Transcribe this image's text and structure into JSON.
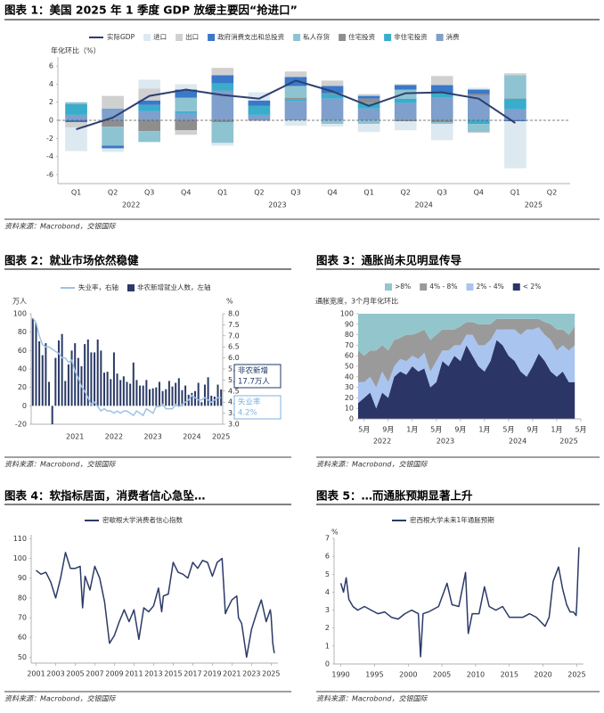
{
  "chart_data": [
    {
      "type": "bar",
      "stacked": true,
      "title": "图表 1：美国 2025 年 1 季度 GDP 放缓主要因“抢进口”",
      "y_label": "年化环比（%）",
      "source": "资料来源：Macrobond，交银国际",
      "categories": [
        "Q1",
        "Q2",
        "Q3",
        "Q4",
        "Q1",
        "Q2",
        "Q3",
        "Q4",
        "Q1",
        "Q2",
        "Q3",
        "Q4",
        "Q1",
        "Q2"
      ],
      "groups": [
        "2022",
        "2023",
        "2024",
        "2025"
      ],
      "ylim": [
        -7,
        7
      ],
      "yticks": [
        -6,
        -4,
        -2,
        0,
        2,
        4,
        6
      ],
      "series": [
        {
          "name": "实际GDP",
          "type": "line",
          "color": "#2e3f6e",
          "values": [
            -1.0,
            0.3,
            2.7,
            3.4,
            2.8,
            2.4,
            4.4,
            3.2,
            1.6,
            3.0,
            3.1,
            2.4,
            -0.3,
            null
          ]
        },
        {
          "name": "进口",
          "color": "#dde9f0",
          "values": [
            -2.6,
            -0.4,
            1.0,
            0.6,
            -0.3,
            0.9,
            -0.6,
            -0.3,
            -0.9,
            -1.0,
            -1.8,
            0.2,
            -5.2,
            null
          ]
        },
        {
          "name": "出口",
          "color": "#d0d0d0",
          "values": [
            -0.6,
            1.4,
            1.3,
            -0.5,
            0.8,
            -0.1,
            0.6,
            0.6,
            0.2,
            0.1,
            1.0,
            -0.1,
            0.2,
            null
          ]
        },
        {
          "name": "政府消费支出和总投资",
          "color": "#3a78c9",
          "values": [
            -0.2,
            -0.3,
            0.5,
            0.9,
            0.9,
            0.6,
            1.0,
            0.8,
            0.3,
            0.5,
            0.9,
            0.5,
            -0.1,
            null
          ]
        },
        {
          "name": "私人存货",
          "color": "#8ec3d1",
          "values": [
            0.2,
            -2.1,
            -1.2,
            1.5,
            -2.3,
            0.0,
            1.3,
            -0.4,
            -0.4,
            1.0,
            -0.2,
            -0.9,
            2.6,
            null
          ]
        },
        {
          "name": "住宅投资",
          "color": "#8e8e8e",
          "values": [
            0.0,
            -0.7,
            -1.2,
            -1.1,
            -0.2,
            0.0,
            0.2,
            0.1,
            0.5,
            -0.1,
            -0.2,
            0.2,
            0.0,
            null
          ]
        },
        {
          "name": "非住宅投资",
          "color": "#3aaccc",
          "values": [
            1.2,
            0.0,
            0.7,
            0.2,
            0.8,
            1.0,
            0.2,
            0.5,
            0.6,
            0.5,
            0.5,
            -0.4,
            1.2,
            null
          ]
        },
        {
          "name": "消费",
          "color": "#7f9fcc",
          "values": [
            0.6,
            1.3,
            1.0,
            0.8,
            3.3,
            0.6,
            2.1,
            2.4,
            1.3,
            1.9,
            2.5,
            2.7,
            1.2,
            null
          ]
        }
      ]
    },
    {
      "type": "bar",
      "stacked": false,
      "title": "图表 2：就业市场依然稳健",
      "y_label": "万人",
      "y2_label": "%",
      "source": "资料来源：Macrobond，交银国际",
      "categories": [
        null,
        null,
        null,
        null,
        null,
        null,
        null,
        null,
        null,
        null,
        null,
        null,
        null,
        "2021",
        null,
        null,
        null,
        null,
        null,
        null,
        null,
        null,
        null,
        null,
        null,
        "2022",
        null,
        null,
        null,
        null,
        null,
        null,
        null,
        null,
        null,
        null,
        null,
        "2023",
        null,
        null,
        null,
        null,
        null,
        null,
        null,
        null,
        null,
        null,
        null,
        "2024",
        null,
        null,
        null,
        null,
        null,
        null,
        null,
        null,
        "2025"
      ],
      "ylim": [
        -20,
        100
      ],
      "yticks": [
        -20,
        0,
        20,
        40,
        60,
        80,
        100
      ],
      "y2lim": [
        3,
        8
      ],
      "y2ticks": [
        {
          "value": 3,
          "label": "3.0"
        },
        3.5,
        {
          "value": 4,
          "label": "4.0"
        },
        4.5,
        {
          "value": 5,
          "label": "5.0"
        },
        5.5,
        {
          "value": 6,
          "label": "6.0"
        },
        6.5,
        {
          "value": 7,
          "label": "7.0"
        },
        7.5,
        {
          "value": 8,
          "label": "8.0"
        }
      ],
      "series": [
        {
          "name": "失业率，右轴",
          "type": "line",
          "axis": "y2",
          "color": "#9dc3e6",
          "values": [
            7.8,
            7.6,
            7.0,
            6.6,
            6.5,
            6.5,
            6.4,
            6.3,
            6.2,
            6.0,
            6.0,
            5.8,
            5.9,
            5.4,
            5.1,
            4.7,
            4.5,
            4.2,
            3.9,
            4.0,
            3.8,
            3.6,
            3.7,
            3.6,
            3.6,
            3.5,
            3.6,
            3.5,
            3.6,
            3.6,
            3.5,
            3.4,
            3.6,
            3.5,
            3.4,
            3.7,
            3.6,
            3.5,
            3.8,
            3.8,
            3.9,
            3.7,
            3.7,
            3.7,
            3.9,
            3.8,
            3.9,
            4.0,
            4.1,
            4.3,
            4.2,
            4.1,
            4.1,
            4.2,
            4.1,
            4.0,
            4.1,
            4.2,
            4.2
          ]
        },
        {
          "name": "非农新增就业人数，左轴",
          "color": "#2b3a67",
          "values": [
            95,
            90,
            70,
            55,
            68,
            26,
            -20,
            52,
            71,
            78,
            27,
            45,
            60,
            68,
            52,
            43,
            67,
            72,
            58,
            58,
            72,
            60,
            36,
            37,
            29,
            58,
            35,
            28,
            32,
            26,
            24,
            47,
            28,
            22,
            22,
            28,
            18,
            19,
            20,
            26,
            16,
            18,
            27,
            21,
            25,
            30,
            17,
            22,
            12,
            14,
            16,
            25,
            4,
            23,
            31,
            11,
            10,
            23,
            17.7
          ]
        }
      ],
      "annotations": [
        {
          "lines": [
            "非农新增",
            "17.7万人"
          ],
          "color": "#1f3864"
        },
        {
          "lines": [
            "失业率",
            "4.2%"
          ],
          "color": "#7fb2e0"
        }
      ]
    },
    {
      "type": "area",
      "title": "图表 3：通胀尚未见明显传导",
      "subtitle": "通胀宽度，3个月年化环比",
      "source": "资料来源：Macrobond，交银国际",
      "categories": [
        null,
        "5月",
        null,
        null,
        null,
        "9月",
        null,
        null,
        null,
        "1月",
        null,
        null,
        null,
        "5月",
        null,
        null,
        null,
        "9月",
        null,
        null,
        null,
        "1月",
        null,
        null,
        null,
        "5月",
        null,
        null,
        null,
        "9月",
        null,
        null,
        null,
        "1月",
        null,
        null,
        null,
        "5月"
      ],
      "groups": [
        "2022",
        "2023",
        "2024",
        "2025"
      ],
      "ylim": [
        0,
        100
      ],
      "yticks": [
        0,
        10,
        20,
        30,
        40,
        50,
        60,
        70,
        80,
        90,
        100
      ],
      "series": [
        {
          "name": ">8%",
          "color": "#93c6cc",
          "values": [
            35,
            40,
            35,
            35,
            30,
            35,
            25,
            23,
            20,
            20,
            18,
            15,
            25,
            20,
            15,
            15,
            15,
            12,
            8,
            8,
            10,
            10,
            10,
            5,
            5,
            5,
            5,
            5,
            5,
            5,
            5,
            8,
            10,
            15,
            15,
            20,
            12,
            null
          ]
        },
        {
          "name": "4% - 8%",
          "color": "#9a9a9a",
          "values": [
            30,
            25,
            25,
            35,
            25,
            30,
            25,
            20,
            25,
            20,
            25,
            22,
            30,
            25,
            20,
            20,
            15,
            18,
            12,
            12,
            20,
            20,
            15,
            10,
            10,
            10,
            10,
            15,
            10,
            10,
            8,
            12,
            15,
            20,
            15,
            15,
            18,
            null
          ]
        },
        {
          "name": "2% - 4%",
          "color": "#a9c4ef",
          "values": [
            20,
            15,
            15,
            20,
            20,
            15,
            10,
            12,
            13,
            10,
            12,
            15,
            15,
            20,
            10,
            15,
            10,
            15,
            10,
            20,
            20,
            25,
            20,
            10,
            15,
            25,
            30,
            35,
            45,
            35,
            25,
            25,
            30,
            25,
            25,
            30,
            35,
            null
          ]
        },
        {
          "name": "< 2%",
          "color": "#2b3566",
          "values": [
            15,
            20,
            25,
            10,
            25,
            20,
            40,
            45,
            42,
            50,
            45,
            48,
            30,
            35,
            55,
            50,
            60,
            55,
            70,
            60,
            50,
            45,
            55,
            75,
            70,
            60,
            55,
            45,
            40,
            50,
            62,
            55,
            45,
            40,
            45,
            35,
            35,
            null
          ]
        }
      ]
    },
    {
      "type": "line",
      "title": "图表 4：软指标居面，消费者信心急坠…",
      "source": "资料来源：Macrobond，交银国际",
      "xlim": [
        2000.5,
        2025.7
      ],
      "xticks": [
        2001,
        2003,
        2005,
        2007,
        2009,
        2011,
        2013,
        2015,
        2017,
        2019,
        2021,
        2023,
        2025
      ],
      "ylim": [
        47,
        112
      ],
      "yticks": [
        50,
        60,
        70,
        80,
        90,
        100,
        110
      ],
      "series": [
        {
          "name": "密歇根大学消费者信心指数",
          "color": "#2b3a67",
          "x": [
            2001,
            2001.5,
            2002,
            2002.5,
            2003,
            2003.5,
            2004,
            2004.5,
            2005,
            2005.5,
            2005.75,
            2006,
            2006.5,
            2007,
            2007.5,
            2008,
            2008.5,
            2009,
            2009.5,
            2010,
            2010.5,
            2011,
            2011.5,
            2012,
            2012.5,
            2013,
            2013.5,
            2013.83,
            2014,
            2014.5,
            2015,
            2015.5,
            2016,
            2016.5,
            2017,
            2017.5,
            2018,
            2018.5,
            2019,
            2019.5,
            2020,
            2020.33,
            2020.5,
            2021,
            2021.5,
            2021.67,
            2022,
            2022.5,
            2023,
            2023.5,
            2024,
            2024.5,
            2024.92,
            2025,
            2025.17,
            2025.33
          ],
          "values": [
            94,
            92,
            93,
            88,
            80,
            90,
            103,
            95,
            95,
            96,
            75,
            91,
            84,
            96,
            90,
            78,
            57,
            61,
            68,
            74,
            68,
            74,
            59,
            75,
            73,
            76,
            85,
            73,
            81,
            82,
            98,
            93,
            92,
            90,
            98,
            95,
            99,
            98,
            91,
            98,
            100,
            72,
            74,
            79,
            81,
            70,
            67,
            50,
            64,
            72,
            79,
            68,
            74,
            71,
            57,
            52
          ]
        }
      ]
    },
    {
      "type": "line",
      "title": "图表 5：…而通胀预期显著上升",
      "y_label": "%",
      "source": "资料来源：Macrobond，交银国际",
      "xlim": [
        1989,
        2026
      ],
      "xticks": [
        1990,
        1995,
        2000,
        2005,
        2010,
        2015,
        2020,
        2025
      ],
      "ylim": [
        0,
        7
      ],
      "yticks": [
        0,
        1,
        2,
        3,
        4,
        5,
        6,
        7
      ],
      "series": [
        {
          "name": "密西根大学未来1年通胀预期",
          "color": "#2b3a67",
          "x": [
            1990,
            1990.4,
            1990.8,
            1991.2,
            1991.8,
            1992.5,
            1993.5,
            1994.5,
            1995.5,
            1996.5,
            1997.5,
            1998.5,
            1999.5,
            2000.5,
            2001.5,
            2001.83,
            2002.2,
            2003,
            2004.5,
            2005.75,
            2006.5,
            2007.5,
            2008.5,
            2008.9,
            2009.5,
            2010.5,
            2011.3,
            2012,
            2013,
            2014,
            2015,
            2016,
            2017,
            2018,
            2019,
            2020.3,
            2020.9,
            2021.5,
            2022.3,
            2022.9,
            2023.5,
            2024,
            2024.5,
            2024.9,
            2025,
            2025.17,
            2025.33
          ],
          "values": [
            4.5,
            4.0,
            4.8,
            3.6,
            3.2,
            3.0,
            3.2,
            3.0,
            2.8,
            2.9,
            2.6,
            2.5,
            2.8,
            3.0,
            2.8,
            0.4,
            2.8,
            2.9,
            3.2,
            4.5,
            3.3,
            3.2,
            5.1,
            1.7,
            2.8,
            2.8,
            4.3,
            3.2,
            3.0,
            3.2,
            2.6,
            2.6,
            2.6,
            2.8,
            2.6,
            2.1,
            2.6,
            4.6,
            5.4,
            4.2,
            3.3,
            2.9,
            2.9,
            2.7,
            3.3,
            5.0,
            6.5
          ]
        }
      ]
    }
  ]
}
